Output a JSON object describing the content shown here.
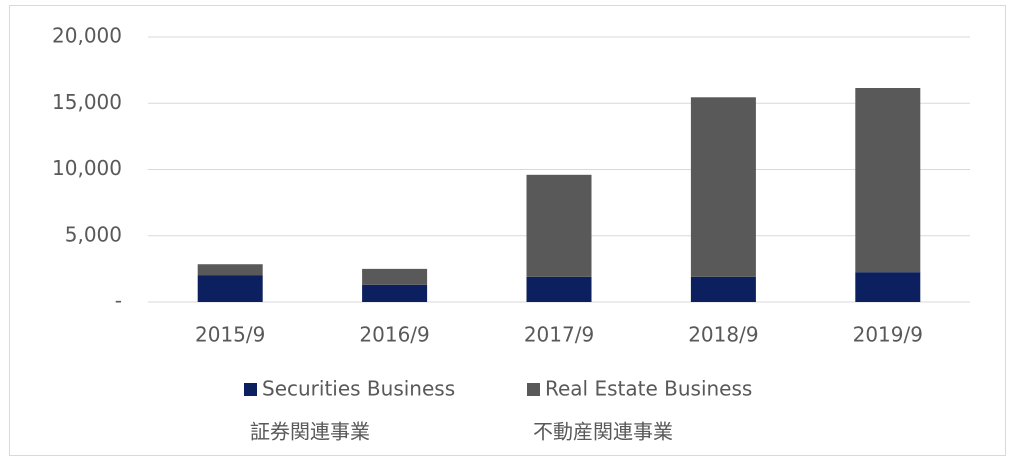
{
  "chart_data": {
    "type": "stacked_bar",
    "categories": [
      "2015/9",
      "2016/9",
      "2017/9",
      "2018/9",
      "2019/9"
    ],
    "series": [
      {
        "name": "Securities Business",
        "name_ja": "証券関連事業",
        "color": "#0c1f5e",
        "values": [
          2000,
          1300,
          1900,
          1900,
          2250
        ]
      },
      {
        "name": "Real Estate Business",
        "name_ja": "不動産関連事業",
        "color": "#595959",
        "values": [
          850,
          1200,
          7700,
          13550,
          13900
        ]
      }
    ],
    "ylim": [
      0,
      20000
    ],
    "yticks": [
      {
        "value": 0,
        "label": "-"
      },
      {
        "value": 5000,
        "label": "5,000"
      },
      {
        "value": 10000,
        "label": "10,000"
      },
      {
        "value": 15000,
        "label": "15,000"
      },
      {
        "value": 20000,
        "label": "20,000"
      }
    ],
    "grid": true,
    "legend": "bottom"
  }
}
